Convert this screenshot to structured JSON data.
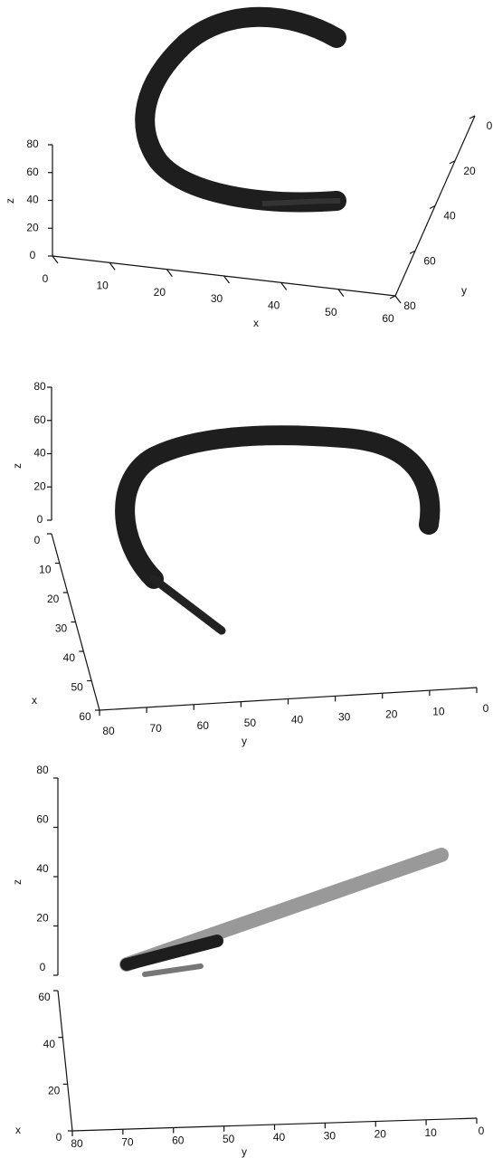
{
  "chart_data": [
    {
      "type": "surface3d",
      "xlabel": "x",
      "ylabel": "y",
      "zlabel": "z",
      "xlim": [
        0,
        60
      ],
      "xticks": [
        0,
        10,
        20,
        30,
        40,
        50,
        60
      ],
      "ylim": [
        0,
        80
      ],
      "yticks": [
        0,
        20,
        40,
        60,
        80
      ],
      "zlim": [
        0,
        80
      ],
      "zticks": [
        0,
        20,
        40,
        60,
        80
      ]
    },
    {
      "type": "surface3d",
      "xlabel": "x",
      "ylabel": "y",
      "zlabel": "z",
      "xlim": [
        0,
        60
      ],
      "xticks": [
        0,
        10,
        20,
        30,
        40,
        50,
        60
      ],
      "ylim": [
        0,
        80
      ],
      "yticks": [
        0,
        10,
        20,
        30,
        40,
        50,
        60,
        70,
        80
      ],
      "zlim": [
        0,
        80
      ],
      "zticks": [
        0,
        20,
        40,
        60,
        80
      ]
    },
    {
      "type": "surface3d",
      "xlabel": "x",
      "ylabel": "y",
      "zlabel": "z",
      "xlim": [
        0,
        60
      ],
      "xticks": [
        0,
        20,
        40,
        60
      ],
      "ylim": [
        0,
        80
      ],
      "yticks": [
        0,
        10,
        20,
        30,
        40,
        50,
        60,
        70,
        80
      ],
      "zlim": [
        0,
        80
      ],
      "zticks": [
        0,
        20,
        40,
        60,
        80
      ]
    }
  ]
}
